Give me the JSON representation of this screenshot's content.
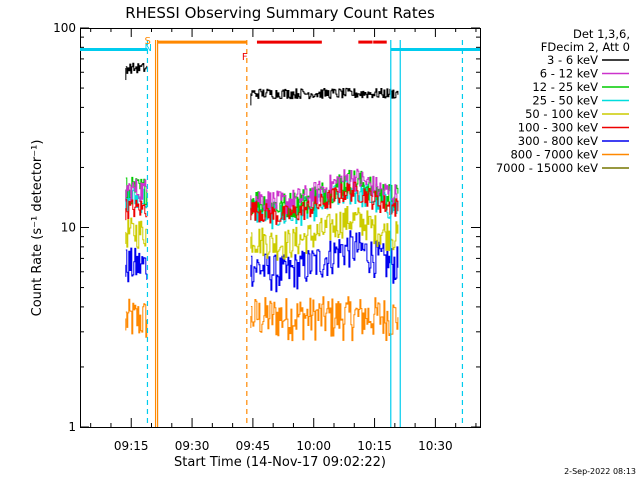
{
  "chart_data": {
    "type": "line",
    "title": "RHESSI Observing Summary Count Rates",
    "xlabel": "Start Time (14-Nov-17 09:02:22)",
    "ylabel": "Count Rate (s⁻¹ detector⁻¹)",
    "y_scale": "log",
    "ylim": [
      1,
      100
    ],
    "xlim": [
      "09:02:22",
      "10:41:00"
    ],
    "x_ticks": [
      "09:15",
      "09:30",
      "09:45",
      "10:00",
      "10:15",
      "10:30"
    ],
    "y_ticks": [
      "1",
      "10",
      "100"
    ],
    "grid": false,
    "legend_position": "top-right, outside plot",
    "legend_header": [
      "Det 1,3,6,",
      "FDecim 2, Att 0"
    ],
    "series": [
      {
        "name": "3 - 6 keV",
        "color": "#000000",
        "segments": [
          {
            "start": "09:13:40",
            "end": "09:19:00",
            "level": 63
          },
          {
            "start": "09:44:30",
            "end": "10:20:50",
            "level": 47
          }
        ]
      },
      {
        "name": "6 - 12 keV",
        "color": "#cc33cc",
        "segments": [
          {
            "start": "09:13:40",
            "end": "09:19:00",
            "level": 15.5
          },
          {
            "start": "09:44:30",
            "end": "10:20:50",
            "level": 14.5
          }
        ]
      },
      {
        "name": "12 - 25 keV",
        "color": "#00cc00",
        "segments": [
          {
            "start": "09:13:40",
            "end": "09:19:00",
            "level": 15.5
          },
          {
            "start": "09:44:30",
            "end": "10:20:50",
            "level": 14
          }
        ]
      },
      {
        "name": "25 - 50 keV",
        "color": "#00dddd",
        "segments": [
          {
            "start": "09:13:40",
            "end": "09:19:00",
            "level": 14
          },
          {
            "start": "09:44:30",
            "end": "10:20:50",
            "level": 12.5
          }
        ]
      },
      {
        "name": "50 - 100 keV",
        "color": "#cccc00",
        "segments": [
          {
            "start": "09:13:40",
            "end": "09:19:00",
            "level": 9.5
          },
          {
            "start": "09:44:30",
            "end": "10:20:50",
            "level": 9
          }
        ]
      },
      {
        "name": "100 - 300 keV",
        "color": "#ee0000",
        "segments": [
          {
            "start": "09:13:40",
            "end": "09:19:00",
            "level": 12.5
          },
          {
            "start": "09:44:30",
            "end": "10:20:50",
            "level": 12.5
          }
        ]
      },
      {
        "name": "300 - 800 keV",
        "color": "#0000ee",
        "segments": [
          {
            "start": "09:13:40",
            "end": "09:19:00",
            "level": 6.5
          },
          {
            "start": "09:44:30",
            "end": "10:20:50",
            "level": 6.5
          }
        ]
      },
      {
        "name": "800 - 7000 keV",
        "color": "#ff8800",
        "segments": [
          {
            "start": "09:13:40",
            "end": "09:19:00",
            "level": 3.5
          },
          {
            "start": "09:44:30",
            "end": "10:20:50",
            "level": 3.6
          }
        ]
      },
      {
        "name": "7000 - 15000 keV",
        "color": "#777700",
        "segments": []
      }
    ],
    "annotations": {
      "flags": [
        {
          "label": "S",
          "color": "#ff8800",
          "time": "09:19:30"
        },
        {
          "label": "N",
          "color": "#00ccee",
          "time": "09:19:30"
        },
        {
          "label": "F",
          "color": "#ee0000",
          "time": "09:43:30"
        }
      ],
      "flare_bars": [
        {
          "start": "09:46:00",
          "end": "10:02:00",
          "color": "#ee0000"
        },
        {
          "start": "10:11:00",
          "end": "10:14:30",
          "color": "#ee0000"
        },
        {
          "start": "10:14:40",
          "end": "10:18:00",
          "color": "#ee0000"
        }
      ],
      "saa_bar": {
        "start": "09:21:30",
        "end": "09:43:30",
        "color": "#ff8800",
        "level": 85
      },
      "night_bars": [
        {
          "start": "09:02:22",
          "end": "09:19:00",
          "color": "#00ccee",
          "level": 78
        },
        {
          "start": "10:19:00",
          "end": "10:41:00",
          "color": "#00ccee",
          "level": 78
        }
      ],
      "vertical_lines": [
        {
          "time": "09:19:00",
          "color": "#00ccee",
          "style": "dashed"
        },
        {
          "time": "09:21:00",
          "color": "#ff8800",
          "style": "solid"
        },
        {
          "time": "09:21:30",
          "color": "#ff8800",
          "style": "solid"
        },
        {
          "time": "09:43:30",
          "color": "#ff8800",
          "style": "dashed"
        },
        {
          "time": "10:19:00",
          "color": "#00ccee",
          "style": "solid"
        },
        {
          "time": "10:21:20",
          "color": "#00ccee",
          "style": "solid"
        },
        {
          "time": "10:36:40",
          "color": "#00ccee",
          "style": "dashed"
        }
      ]
    }
  },
  "footer": {
    "date_stamp": "2-Sep-2022 08:13"
  }
}
